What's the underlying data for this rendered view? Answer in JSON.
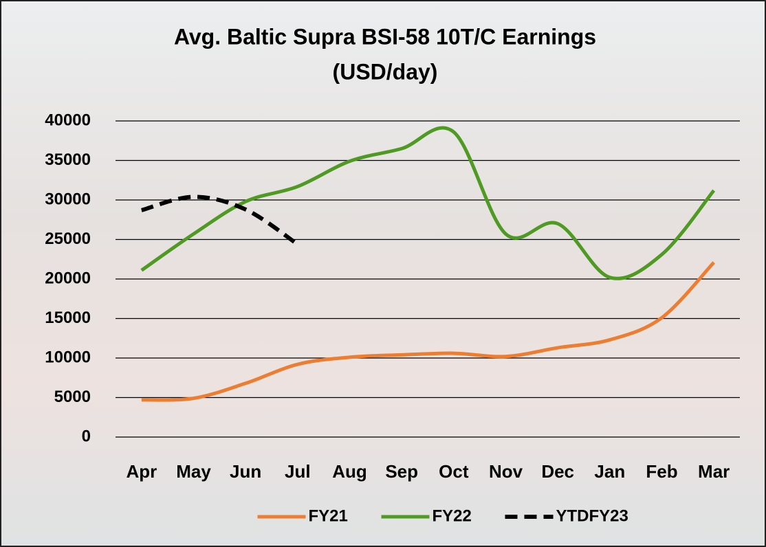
{
  "chart_data": {
    "type": "line",
    "title": "Avg. Baltic Supra BSI-58 10T/C Earnings",
    "subtitle": "(USD/day)",
    "categories": [
      "Apr",
      "May",
      "Jun",
      "Jul",
      "Aug",
      "Sep",
      "Oct",
      "Nov",
      "Dec",
      "Jan",
      "Feb",
      "Mar"
    ],
    "series": [
      {
        "name": "FY21",
        "color": "#ed7d31",
        "dashed": false,
        "values": [
          4700,
          4900,
          6800,
          9200,
          10100,
          10400,
          10600,
          10200,
          11300,
          12300,
          15100,
          22100
        ]
      },
      {
        "name": "FY22",
        "color": "#4e9a22",
        "dashed": false,
        "values": [
          21100,
          25700,
          29800,
          31700,
          34900,
          36500,
          38600,
          25700,
          27000,
          20200,
          23100,
          31200
        ]
      },
      {
        "name": "YTDFY23",
        "color": "#000000",
        "dashed": true,
        "values": [
          28700,
          30400,
          28800,
          24400,
          null,
          null,
          null,
          null,
          null,
          null,
          null,
          null
        ]
      }
    ],
    "ylim": [
      0,
      40000
    ],
    "yticks": [
      0,
      5000,
      10000,
      15000,
      20000,
      25000,
      30000,
      35000,
      40000
    ],
    "grid": true,
    "legend": "bottom"
  }
}
